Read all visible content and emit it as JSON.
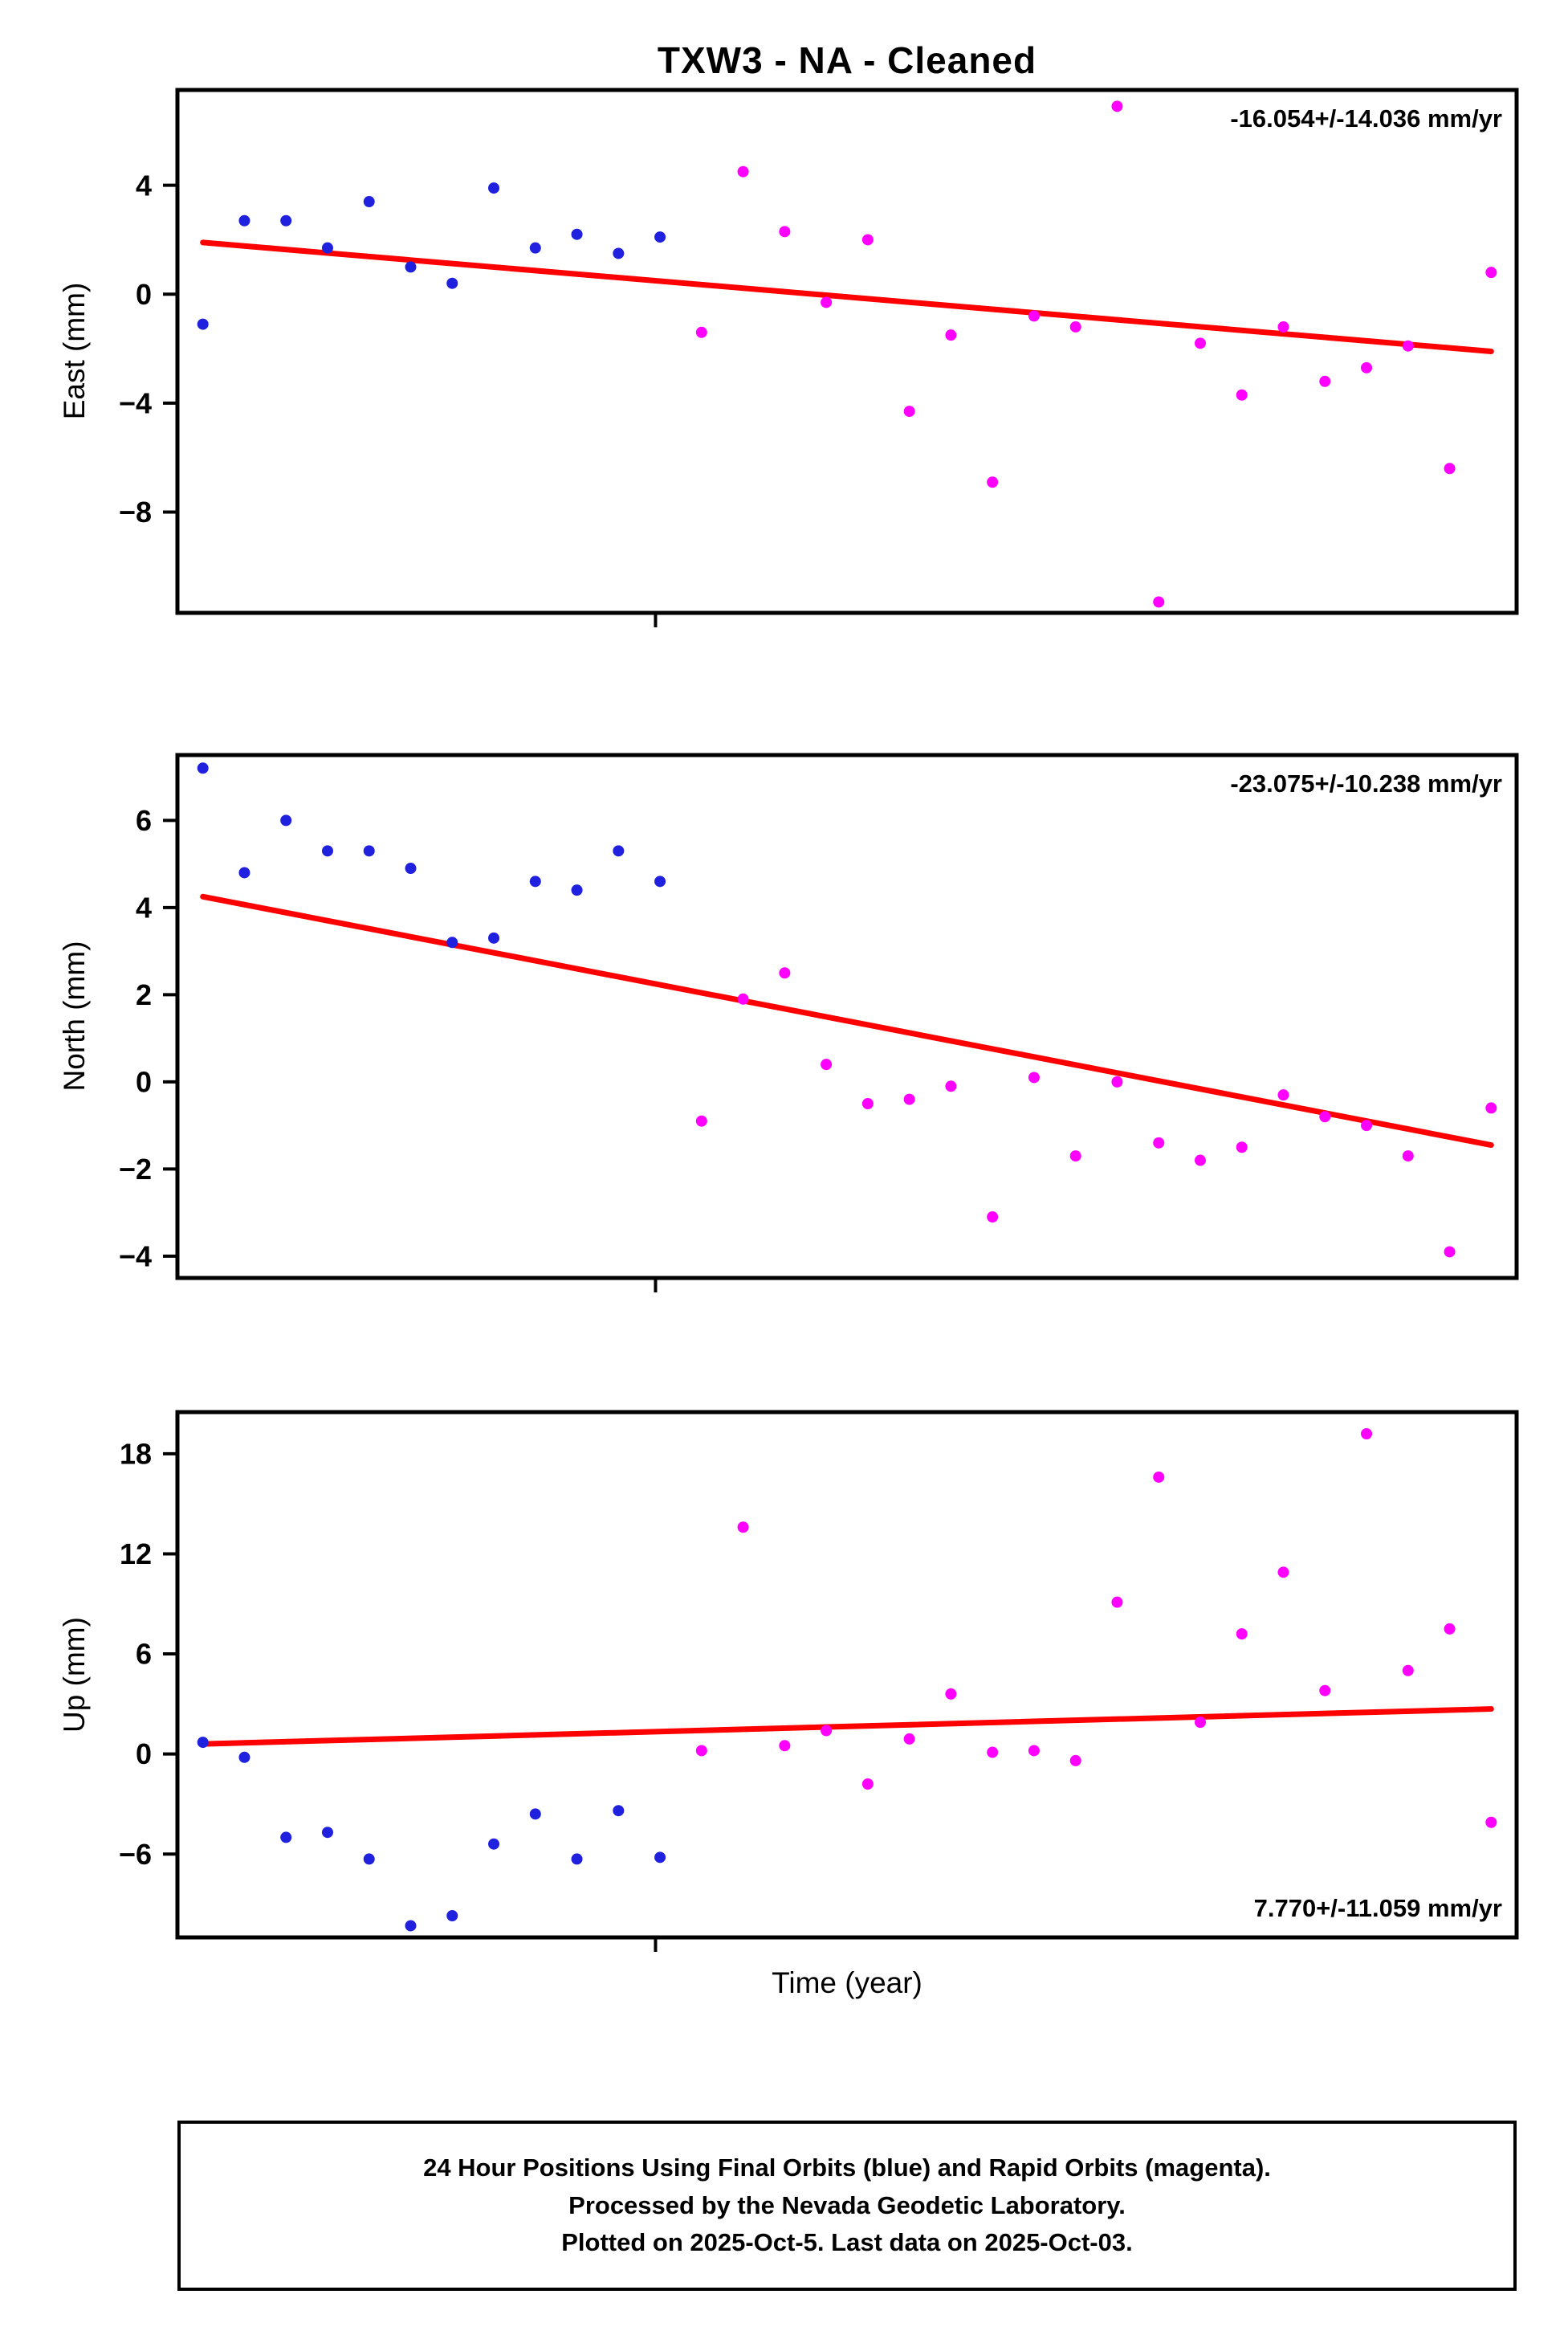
{
  "title": "TXW3  - NA - Cleaned",
  "xlabel": "Time (year)",
  "colors": {
    "final": "#2020df",
    "rapid": "#ff00ff",
    "trend": "#ff0000",
    "axis": "#000000"
  },
  "footer": {
    "line1": "24 Hour Positions Using Final Orbits (blue) and Rapid Orbits (magenta).",
    "line2": "Processed by the Nevada Geodetic Laboratory.",
    "line3": "Plotted on 2025-Oct-5. Last data on 2025-Oct-03."
  },
  "legend": {
    "final_orbits": "blue",
    "rapid_orbits": "magenta"
  },
  "chart_data": [
    {
      "type": "scatter",
      "ylabel": "East (mm)",
      "annotation": "-16.054+/-14.036 mm/yr",
      "annotation_position": "top-right",
      "ylim": [
        -11.7,
        7.5
      ],
      "yticks": [
        4,
        0,
        -4,
        -8
      ],
      "series": [
        {
          "name": "final",
          "color_key": "final",
          "values": [
            -1.1,
            2.7,
            2.7,
            1.7,
            3.4,
            1.0,
            0.4,
            3.9,
            1.7,
            2.2,
            1.5,
            2.1
          ]
        },
        {
          "name": "rapid",
          "color_key": "rapid",
          "values": [
            -1.4,
            4.5,
            2.3,
            -0.3,
            2.0,
            -4.3,
            -1.5,
            -6.9,
            -0.8,
            -1.2,
            6.9,
            -11.3,
            -1.8,
            -3.7,
            -1.2,
            -3.2,
            -2.7,
            -1.9,
            -6.4,
            0.8
          ]
        }
      ],
      "trend": {
        "start_mm": 1.9,
        "end_mm": -2.1,
        "rate_label": "-16.054+/-14.036 mm/yr"
      }
    },
    {
      "type": "scatter",
      "ylabel": "North (mm)",
      "annotation": "-23.075+/-10.238 mm/yr",
      "annotation_position": "top-right",
      "ylim": [
        -4.5,
        7.5
      ],
      "yticks": [
        6,
        4,
        2,
        0,
        -2,
        -4
      ],
      "series": [
        {
          "name": "final",
          "color_key": "final",
          "values": [
            7.2,
            4.8,
            6.0,
            5.3,
            5.3,
            4.9,
            3.2,
            3.3,
            4.6,
            4.4,
            5.3,
            4.6
          ]
        },
        {
          "name": "rapid",
          "color_key": "rapid",
          "values": [
            -0.9,
            1.9,
            2.5,
            0.4,
            -0.5,
            -0.4,
            -0.1,
            -3.1,
            0.1,
            -1.7,
            0.0,
            -1.4,
            -1.8,
            -1.5,
            -0.3,
            -0.8,
            -1.0,
            -1.7,
            -3.9,
            -0.6
          ]
        }
      ],
      "trend": {
        "start_mm": 4.25,
        "end_mm": -1.45,
        "rate_label": "-23.075+/-10.238 mm/yr"
      }
    },
    {
      "type": "scatter",
      "ylabel": "Up (mm)",
      "annotation": "7.770+/-11.059 mm/yr",
      "annotation_position": "bottom-right",
      "ylim": [
        -11.0,
        20.5
      ],
      "yticks": [
        18,
        12,
        6,
        0,
        -6
      ],
      "series": [
        {
          "name": "final",
          "color_key": "final",
          "values": [
            0.7,
            -0.2,
            -5.0,
            -4.7,
            -6.3,
            -10.3,
            -9.7,
            -5.4,
            -3.6,
            -6.3,
            -3.4,
            -6.2
          ]
        },
        {
          "name": "rapid",
          "color_key": "rapid",
          "values": [
            0.2,
            13.6,
            0.5,
            1.4,
            -1.8,
            0.9,
            3.6,
            0.1,
            0.2,
            -0.4,
            9.1,
            16.6,
            1.9,
            7.2,
            10.9,
            3.8,
            19.2,
            5.0,
            7.5,
            -4.1
          ]
        }
      ],
      "trend": {
        "start_mm": 0.6,
        "end_mm": 2.7,
        "rate_label": "7.770+/-11.059 mm/yr"
      }
    }
  ]
}
